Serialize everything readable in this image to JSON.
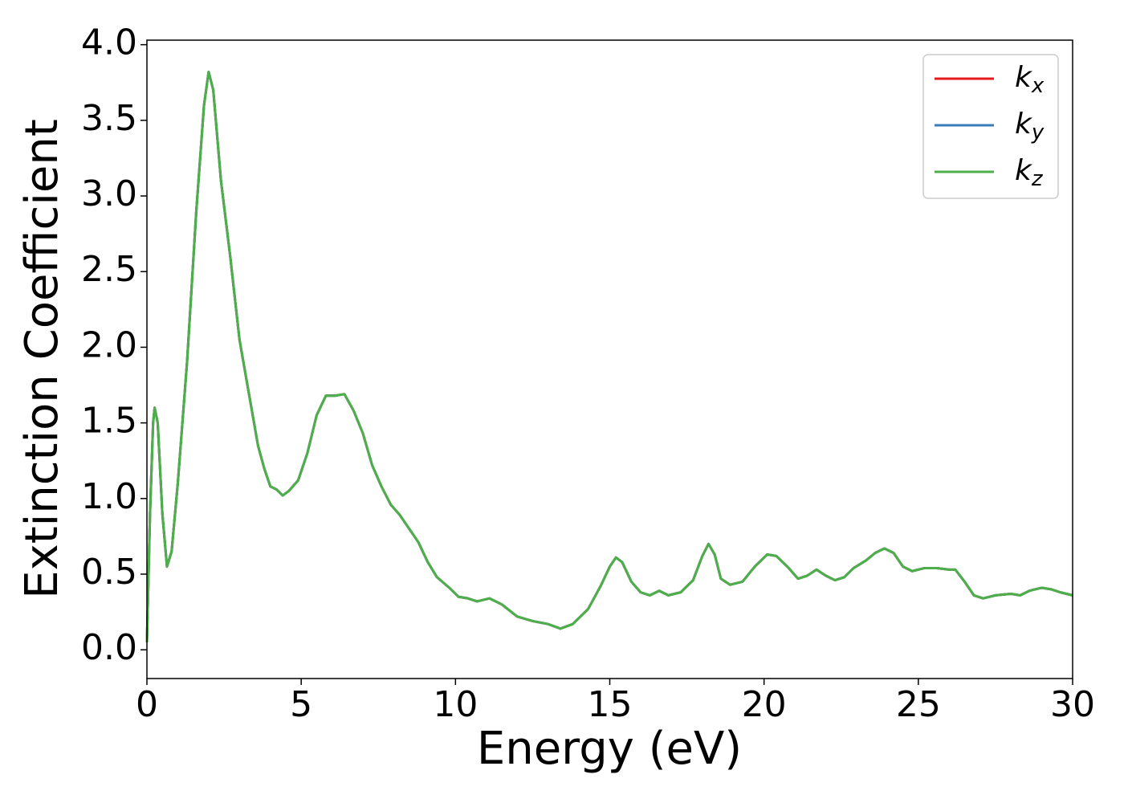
{
  "chart_data": {
    "type": "line",
    "xlabel": "Energy (eV)",
    "ylabel": "Extinction Coefficient",
    "x": [
      0,
      0.1,
      0.2,
      0.25,
      0.35,
      0.5,
      0.65,
      0.8,
      1.0,
      1.3,
      1.6,
      1.85,
      2.0,
      2.15,
      2.4,
      2.7,
      3.0,
      3.3,
      3.6,
      3.8,
      4.0,
      4.2,
      4.4,
      4.6,
      4.9,
      5.2,
      5.5,
      5.8,
      6.1,
      6.4,
      6.7,
      7.0,
      7.3,
      7.6,
      7.9,
      8.2,
      8.5,
      8.8,
      9.1,
      9.4,
      9.8,
      10.1,
      10.4,
      10.7,
      11.1,
      11.5,
      12.0,
      12.5,
      13.0,
      13.4,
      13.8,
      14.3,
      14.7,
      15.0,
      15.2,
      15.4,
      15.7,
      16.0,
      16.3,
      16.6,
      16.9,
      17.3,
      17.7,
      18.0,
      18.2,
      18.4,
      18.6,
      18.9,
      19.3,
      19.7,
      20.1,
      20.4,
      20.8,
      21.1,
      21.4,
      21.7,
      22.0,
      22.3,
      22.6,
      22.9,
      23.3,
      23.6,
      23.9,
      24.2,
      24.5,
      24.8,
      25.2,
      25.6,
      26.0,
      26.2,
      26.5,
      26.8,
      27.1,
      27.5,
      28.0,
      28.3,
      28.6,
      29.0,
      29.3,
      29.6,
      30.0
    ],
    "series": [
      {
        "name": "kx",
        "color": "#e41a1c",
        "values": [
          0.05,
          0.9,
          1.5,
          1.6,
          1.5,
          0.9,
          0.55,
          0.65,
          1.1,
          1.9,
          2.9,
          3.6,
          3.82,
          3.7,
          3.1,
          2.6,
          2.05,
          1.7,
          1.35,
          1.2,
          1.08,
          1.06,
          1.02,
          1.05,
          1.12,
          1.3,
          1.55,
          1.68,
          1.68,
          1.69,
          1.58,
          1.43,
          1.22,
          1.08,
          0.96,
          0.89,
          0.8,
          0.71,
          0.58,
          0.48,
          0.41,
          0.35,
          0.34,
          0.32,
          0.34,
          0.3,
          0.22,
          0.19,
          0.17,
          0.14,
          0.17,
          0.27,
          0.42,
          0.55,
          0.61,
          0.58,
          0.45,
          0.38,
          0.36,
          0.39,
          0.36,
          0.38,
          0.46,
          0.62,
          0.7,
          0.63,
          0.47,
          0.43,
          0.45,
          0.55,
          0.63,
          0.62,
          0.54,
          0.47,
          0.49,
          0.53,
          0.49,
          0.46,
          0.48,
          0.54,
          0.59,
          0.64,
          0.67,
          0.64,
          0.55,
          0.52,
          0.54,
          0.54,
          0.53,
          0.53,
          0.45,
          0.36,
          0.34,
          0.36,
          0.37,
          0.36,
          0.39,
          0.41,
          0.4,
          0.38,
          0.36
        ]
      },
      {
        "name": "ky",
        "color": "#377eb8",
        "values": [
          0.05,
          0.9,
          1.5,
          1.6,
          1.5,
          0.9,
          0.55,
          0.65,
          1.1,
          1.9,
          2.9,
          3.6,
          3.82,
          3.7,
          3.1,
          2.6,
          2.05,
          1.7,
          1.35,
          1.2,
          1.08,
          1.06,
          1.02,
          1.05,
          1.12,
          1.3,
          1.55,
          1.68,
          1.68,
          1.69,
          1.58,
          1.43,
          1.22,
          1.08,
          0.96,
          0.89,
          0.8,
          0.71,
          0.58,
          0.48,
          0.41,
          0.35,
          0.34,
          0.32,
          0.34,
          0.3,
          0.22,
          0.19,
          0.17,
          0.14,
          0.17,
          0.27,
          0.42,
          0.55,
          0.61,
          0.58,
          0.45,
          0.38,
          0.36,
          0.39,
          0.36,
          0.38,
          0.46,
          0.62,
          0.7,
          0.63,
          0.47,
          0.43,
          0.45,
          0.55,
          0.63,
          0.62,
          0.54,
          0.47,
          0.49,
          0.53,
          0.49,
          0.46,
          0.48,
          0.54,
          0.59,
          0.64,
          0.67,
          0.64,
          0.55,
          0.52,
          0.54,
          0.54,
          0.53,
          0.53,
          0.45,
          0.36,
          0.34,
          0.36,
          0.37,
          0.36,
          0.39,
          0.41,
          0.4,
          0.38,
          0.36
        ]
      },
      {
        "name": "kz",
        "color": "#4daf4a",
        "values": [
          0.05,
          0.9,
          1.5,
          1.6,
          1.5,
          0.9,
          0.55,
          0.65,
          1.1,
          1.9,
          2.9,
          3.6,
          3.82,
          3.7,
          3.1,
          2.6,
          2.05,
          1.7,
          1.35,
          1.2,
          1.08,
          1.06,
          1.02,
          1.05,
          1.12,
          1.3,
          1.55,
          1.68,
          1.68,
          1.69,
          1.58,
          1.43,
          1.22,
          1.08,
          0.96,
          0.89,
          0.8,
          0.71,
          0.58,
          0.48,
          0.41,
          0.35,
          0.34,
          0.32,
          0.34,
          0.3,
          0.22,
          0.19,
          0.17,
          0.14,
          0.17,
          0.27,
          0.42,
          0.55,
          0.61,
          0.58,
          0.45,
          0.38,
          0.36,
          0.39,
          0.36,
          0.38,
          0.46,
          0.62,
          0.7,
          0.63,
          0.47,
          0.43,
          0.45,
          0.55,
          0.63,
          0.62,
          0.54,
          0.47,
          0.49,
          0.53,
          0.49,
          0.46,
          0.48,
          0.54,
          0.59,
          0.64,
          0.67,
          0.64,
          0.55,
          0.52,
          0.54,
          0.54,
          0.53,
          0.53,
          0.45,
          0.36,
          0.34,
          0.36,
          0.37,
          0.36,
          0.39,
          0.41,
          0.4,
          0.38,
          0.36
        ]
      }
    ],
    "xlim": [
      0,
      30
    ],
    "xticks": [
      0,
      5,
      10,
      15,
      20,
      25,
      30
    ],
    "ylim": [
      -0.19,
      4.03
    ],
    "yticks": [
      {
        "value": 0,
        "label": "0.0"
      },
      0.5,
      {
        "value": 1,
        "label": "1.0"
      },
      1.5,
      {
        "value": 2,
        "label": "2.0"
      },
      2.5,
      {
        "value": 3,
        "label": "3.0"
      },
      3.5,
      {
        "value": 4,
        "label": "4.0"
      }
    ],
    "grid": false,
    "legend": "upper right"
  }
}
